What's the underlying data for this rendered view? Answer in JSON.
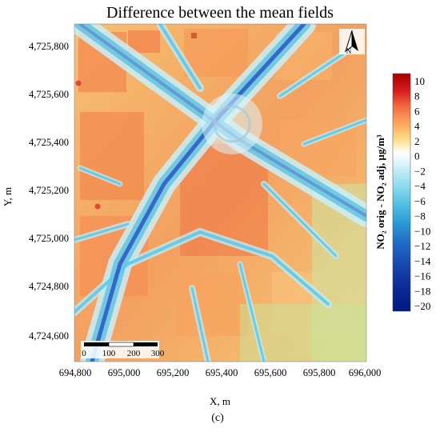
{
  "title": "Difference between the mean fields",
  "x_axis": {
    "label": "X, m",
    "ticks": [
      "694,800",
      "695,000",
      "695,200",
      "695,400",
      "695,600",
      "695,800",
      "696,000"
    ]
  },
  "y_axis": {
    "label": "Y, m",
    "ticks": [
      "4,725,800",
      "4,725,600",
      "4,725,400",
      "4,725,200",
      "4,725,000",
      "4,724,800",
      "4,724,600"
    ]
  },
  "colorbar": {
    "label": "NO₂ orig - NO₂ adj, µg/m³",
    "ticks": [
      "10",
      "8",
      "6",
      "4",
      "2",
      "0",
      "−2",
      "−4",
      "−6",
      "−8",
      "−10",
      "−12",
      "−14",
      "−16",
      "−18",
      "−20"
    ],
    "range": [
      -20,
      10
    ],
    "colors": [
      "#a50000",
      "#d7191c",
      "#f46d43",
      "#fdae61",
      "#fee090",
      "#ffffff",
      "#d4f1f9",
      "#9ee3f0",
      "#5fc9e6",
      "#2fa2d8",
      "#2070c8",
      "#1746b0",
      "#0d2a9a",
      "#001a80"
    ]
  },
  "scalebar": {
    "labels": [
      "0",
      "100",
      "200",
      "300"
    ]
  },
  "north_arrow": {
    "label": "N",
    "icon": "north-arrow-icon"
  },
  "caption": "(c)"
}
